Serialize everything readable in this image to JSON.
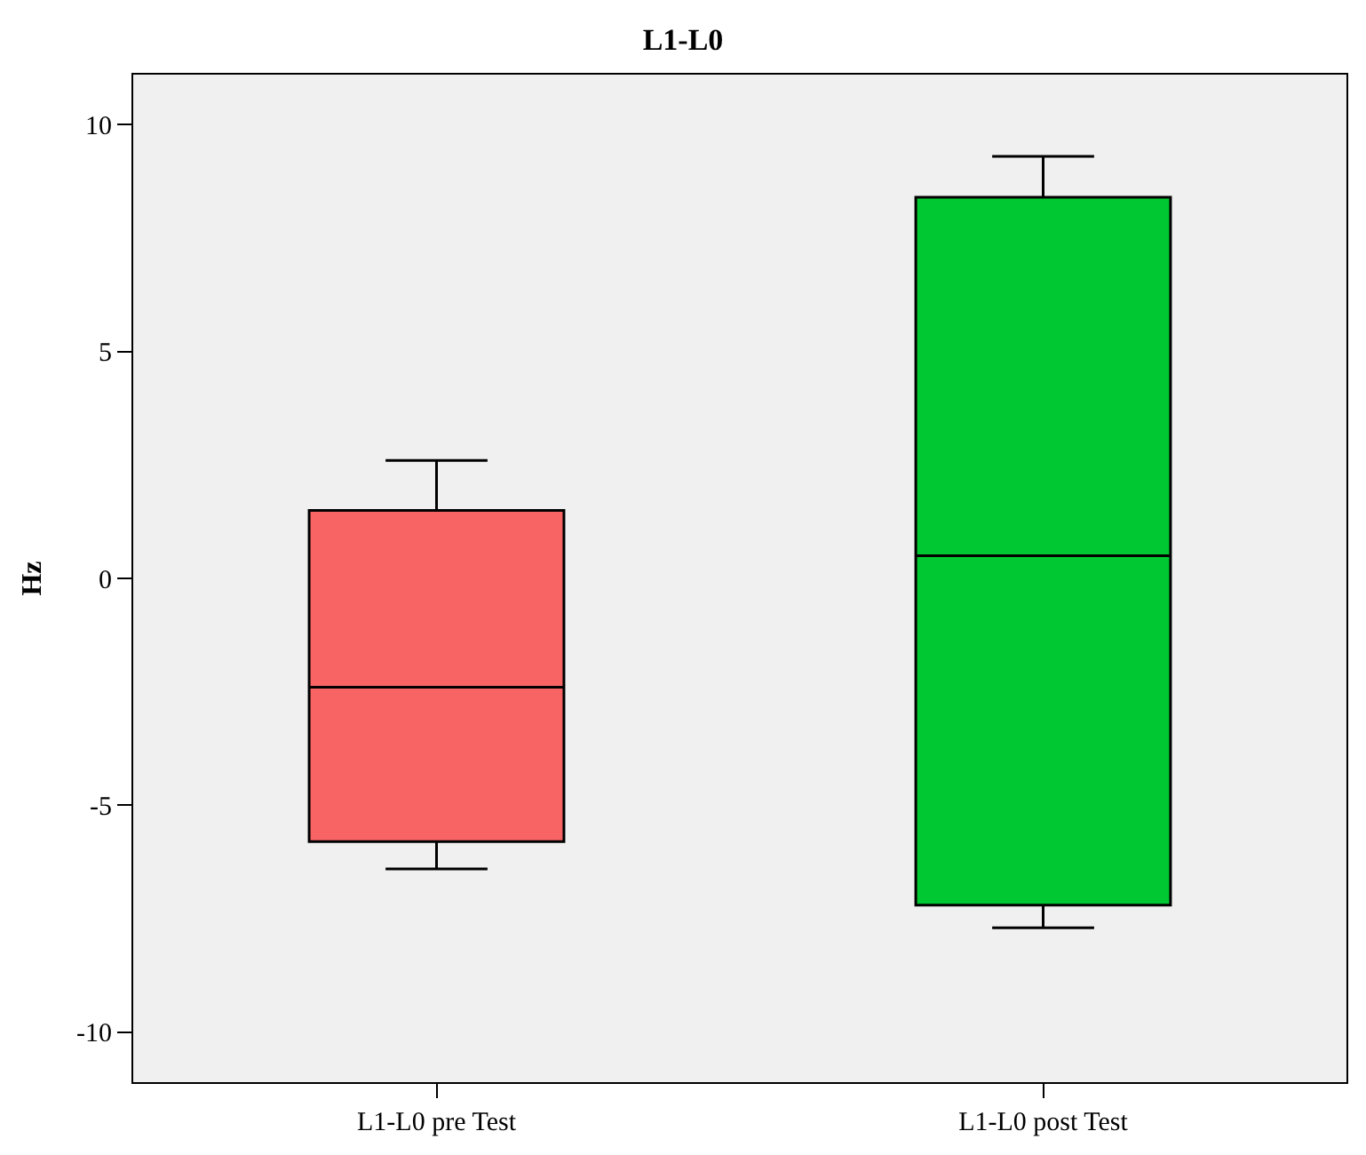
{
  "chart_data": {
    "type": "box",
    "title": "L1-L0",
    "ylabel": "Hz",
    "categories": [
      "L1-L0 pre Test",
      "L1-L0 post Test"
    ],
    "colors": [
      "#f86464",
      "#00c832"
    ],
    "boxes": [
      {
        "low": -6.4,
        "q1": -5.8,
        "median": -2.4,
        "q3": 1.5,
        "high": 2.6
      },
      {
        "low": -7.7,
        "q1": -7.2,
        "median": 0.5,
        "q3": 8.4,
        "high": 9.3
      }
    ],
    "ylim": [
      -11.1,
      11.1
    ],
    "yticks": [
      -10,
      -5,
      0,
      5,
      10
    ],
    "grid": false,
    "legend": false
  }
}
